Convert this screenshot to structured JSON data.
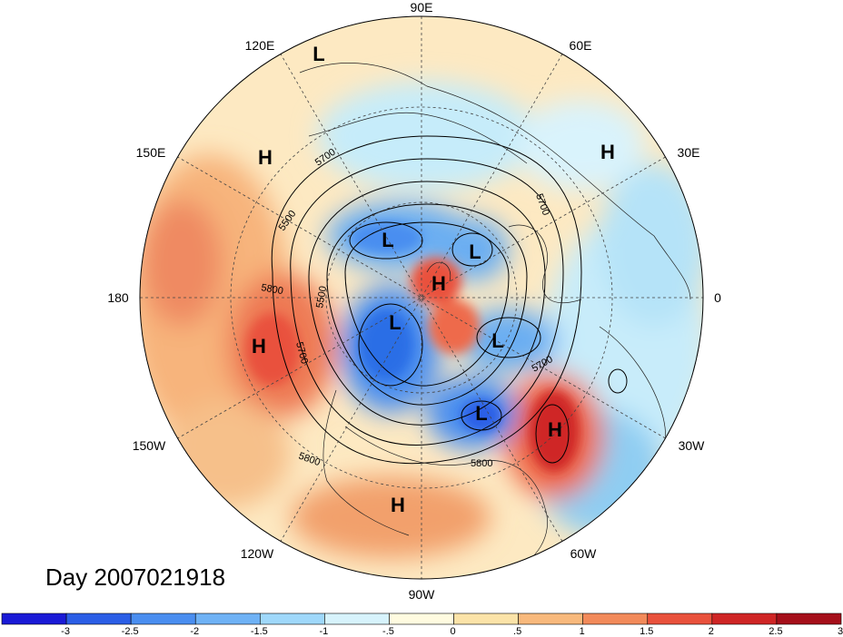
{
  "title": "Day 2007021918",
  "longitude_labels": [
    {
      "text": "90E"
    },
    {
      "text": "60E"
    },
    {
      "text": "30E"
    },
    {
      "text": "0"
    },
    {
      "text": "30W"
    },
    {
      "text": "60W"
    },
    {
      "text": "90W"
    },
    {
      "text": "120W"
    },
    {
      "text": "150W"
    },
    {
      "text": "180"
    },
    {
      "text": "150E"
    },
    {
      "text": "120E"
    }
  ],
  "pressure_centers": [
    {
      "type": "L"
    },
    {
      "type": "H"
    },
    {
      "type": "H"
    },
    {
      "type": "L"
    },
    {
      "type": "L"
    },
    {
      "type": "H"
    },
    {
      "type": "H"
    },
    {
      "type": "L"
    },
    {
      "type": "L"
    },
    {
      "type": "L"
    },
    {
      "type": "H"
    },
    {
      "type": "H"
    }
  ],
  "contour_labels": [
    "5700",
    "5700",
    "5500",
    "5800",
    "5500",
    "5700",
    "5800",
    "5800",
    "5700"
  ],
  "colorbar": {
    "colors": [
      "#1a1ad6",
      "#2b5ee6",
      "#4a8ef0",
      "#6fb2f5",
      "#9fd8fa",
      "#d7f3fc",
      "#fffbe0",
      "#fbe3a8",
      "#f8b97c",
      "#f28a5a",
      "#e9513c",
      "#cf2525",
      "#a50f1a"
    ],
    "tick_labels": [
      "-3",
      "-2.5",
      "-2",
      "-1.5",
      "-1",
      "-.5",
      "0",
      ".5",
      "1",
      "1.5",
      "2",
      "2.5",
      "3"
    ]
  }
}
